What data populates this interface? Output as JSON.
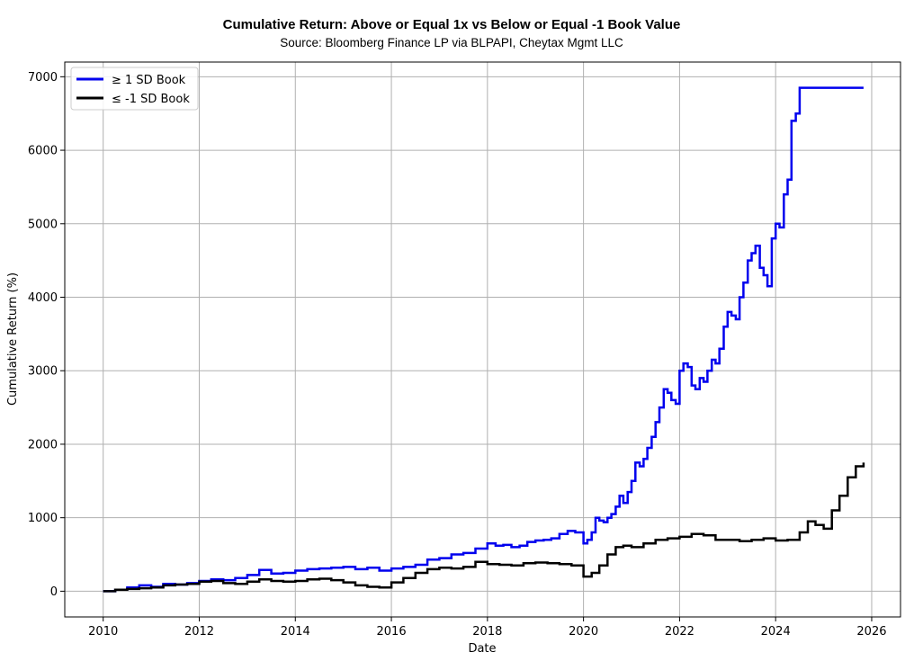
{
  "chart_data": {
    "type": "line",
    "step": true,
    "title": "Cumulative Return: Above or Equal 1x vs Below or Equal -1 Book Value",
    "subtitle": "Source: Bloomberg Finance LP via BLPAPI, Cheytax Mgmt LLC",
    "xlabel": "Date",
    "ylabel": "Cumulative Return (%)",
    "xlim": [
      2009.2,
      2026.6
    ],
    "ylim": [
      -350,
      7200
    ],
    "xticks": [
      2010,
      2012,
      2014,
      2016,
      2018,
      2020,
      2022,
      2024,
      2026
    ],
    "xtick_labels": [
      "2010",
      "2012",
      "2014",
      "2016",
      "2018",
      "2020",
      "2022",
      "2024",
      "2026"
    ],
    "yticks": [
      0,
      1000,
      2000,
      3000,
      4000,
      5000,
      6000,
      7000
    ],
    "ytick_labels": [
      "0",
      "1000",
      "2000",
      "3000",
      "4000",
      "5000",
      "6000",
      "7000"
    ],
    "grid": true,
    "legend_position": "top-left",
    "series": [
      {
        "name": "≥ 1 SD Book",
        "color": "#0000ee",
        "x": [
          2010.0,
          2010.25,
          2010.5,
          2010.75,
          2011.0,
          2011.25,
          2011.5,
          2011.75,
          2012.0,
          2012.25,
          2012.5,
          2012.75,
          2013.0,
          2013.25,
          2013.5,
          2013.75,
          2014.0,
          2014.25,
          2014.5,
          2014.75,
          2015.0,
          2015.25,
          2015.5,
          2015.75,
          2016.0,
          2016.25,
          2016.5,
          2016.75,
          2017.0,
          2017.25,
          2017.5,
          2017.75,
          2018.0,
          2018.17,
          2018.33,
          2018.5,
          2018.67,
          2018.83,
          2019.0,
          2019.17,
          2019.33,
          2019.5,
          2019.67,
          2019.83,
          2020.0,
          2020.08,
          2020.17,
          2020.25,
          2020.33,
          2020.42,
          2020.5,
          2020.58,
          2020.67,
          2020.75,
          2020.83,
          2020.92,
          2021.0,
          2021.08,
          2021.17,
          2021.25,
          2021.33,
          2021.42,
          2021.5,
          2021.58,
          2021.67,
          2021.75,
          2021.83,
          2021.92,
          2022.0,
          2022.08,
          2022.17,
          2022.25,
          2022.33,
          2022.42,
          2022.5,
          2022.58,
          2022.67,
          2022.75,
          2022.83,
          2022.92,
          2023.0,
          2023.08,
          2023.17,
          2023.25,
          2023.33,
          2023.42,
          2023.5,
          2023.58,
          2023.67,
          2023.75,
          2023.83,
          2023.92,
          2024.0,
          2024.08,
          2024.17,
          2024.25,
          2024.33,
          2024.42,
          2024.5,
          2024.58,
          2024.67,
          2024.75,
          2024.83,
          2024.92,
          2025.0,
          2025.08,
          2025.17,
          2025.25,
          2025.33,
          2025.42,
          2025.5,
          2025.58,
          2025.67,
          2025.75,
          2025.83
        ],
        "y": [
          0,
          20,
          50,
          80,
          60,
          100,
          90,
          110,
          140,
          160,
          150,
          180,
          220,
          290,
          240,
          250,
          280,
          300,
          310,
          320,
          330,
          300,
          320,
          280,
          310,
          330,
          360,
          430,
          450,
          500,
          520,
          580,
          650,
          620,
          630,
          600,
          620,
          670,
          690,
          700,
          720,
          780,
          820,
          800,
          650,
          700,
          800,
          1000,
          960,
          940,
          1000,
          1050,
          1150,
          1300,
          1200,
          1350,
          1500,
          1750,
          1700,
          1800,
          1950,
          2100,
          2300,
          2500,
          2750,
          2700,
          2600,
          2550,
          3000,
          3100,
          3050,
          2800,
          2750,
          2900,
          2850,
          3000,
          3150,
          3100,
          3300,
          3600,
          3800,
          3750,
          3700,
          4000,
          4200,
          4500,
          4600,
          4700,
          4400,
          4300,
          4150,
          4800,
          5000,
          4950,
          5400,
          5600,
          6400,
          6500,
          6850,
          6850,
          6850,
          6850,
          6850,
          6850,
          6850,
          6850,
          6850,
          6850,
          6850,
          6850,
          6850,
          6850,
          6850,
          6850,
          6850
        ]
      },
      {
        "name": "≤ -1 SD Book",
        "color": "#000000",
        "x": [
          2010.0,
          2010.25,
          2010.5,
          2010.75,
          2011.0,
          2011.25,
          2011.5,
          2011.75,
          2012.0,
          2012.25,
          2012.5,
          2012.75,
          2013.0,
          2013.25,
          2013.5,
          2013.75,
          2014.0,
          2014.25,
          2014.5,
          2014.75,
          2015.0,
          2015.25,
          2015.5,
          2015.75,
          2016.0,
          2016.25,
          2016.5,
          2016.75,
          2017.0,
          2017.25,
          2017.5,
          2017.75,
          2018.0,
          2018.25,
          2018.5,
          2018.75,
          2019.0,
          2019.25,
          2019.5,
          2019.75,
          2020.0,
          2020.17,
          2020.33,
          2020.5,
          2020.67,
          2020.83,
          2021.0,
          2021.25,
          2021.5,
          2021.75,
          2022.0,
          2022.25,
          2022.5,
          2022.75,
          2023.0,
          2023.25,
          2023.5,
          2023.75,
          2024.0,
          2024.25,
          2024.5,
          2024.67,
          2024.83,
          2025.0,
          2025.17,
          2025.33,
          2025.5,
          2025.67,
          2025.83
        ],
        "y": [
          0,
          20,
          30,
          40,
          50,
          80,
          90,
          100,
          130,
          140,
          110,
          100,
          130,
          160,
          140,
          130,
          140,
          160,
          170,
          150,
          120,
          80,
          60,
          50,
          120,
          180,
          250,
          300,
          320,
          310,
          330,
          400,
          370,
          360,
          350,
          380,
          390,
          380,
          370,
          350,
          200,
          250,
          350,
          500,
          600,
          620,
          600,
          650,
          700,
          720,
          740,
          780,
          760,
          700,
          700,
          680,
          700,
          720,
          690,
          700,
          800,
          950,
          900,
          850,
          1100,
          1300,
          1550,
          1700,
          1750
        ]
      }
    ]
  }
}
